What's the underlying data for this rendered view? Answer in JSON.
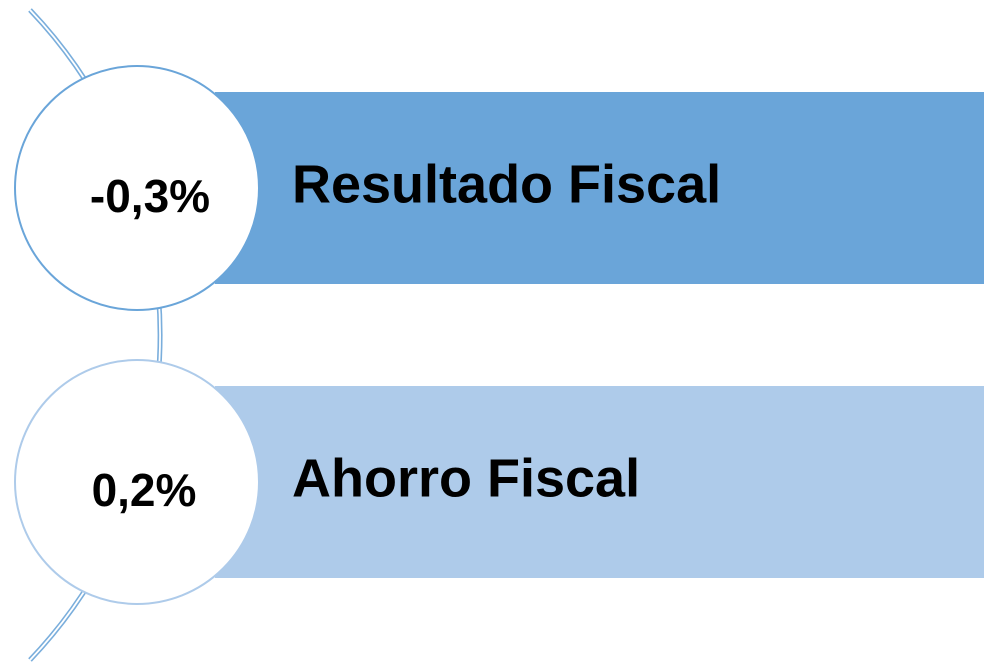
{
  "items": [
    {
      "value": "-0,3%",
      "label": "Resultado Fiscal"
    },
    {
      "value": "0,2%",
      "label": "Ahorro Fiscal"
    }
  ]
}
